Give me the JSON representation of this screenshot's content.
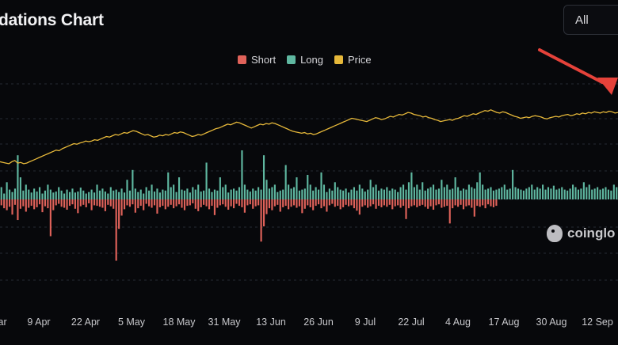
{
  "header": {
    "title": "dations Chart",
    "range_value": "All"
  },
  "legend": [
    {
      "label": "Short",
      "color": "#e0625a"
    },
    {
      "label": "Long",
      "color": "#5fb8a1"
    },
    {
      "label": "Price",
      "color": "#e6b83a"
    }
  ],
  "watermark": {
    "text": "coinglo"
  },
  "chart_data": {
    "type": "bar",
    "x_tick_labels": [
      "ar",
      "9 Apr",
      "22 Apr",
      "5 May",
      "18 May",
      "31 May",
      "13 Jun",
      "26 Jun",
      "9 Jul",
      "22 Jul",
      "4 Aug",
      "17 Aug",
      "30 Aug",
      "12 Sep"
    ],
    "series": [
      {
        "name": "Short",
        "color": "#e0625a",
        "values": [
          0.12,
          0.18,
          0.22,
          0.15,
          0.31,
          0.11,
          0.42,
          0.19,
          0.14,
          0.25,
          0.17,
          0.13,
          0.2,
          0.16,
          0.1,
          0.26,
          0.14,
          0.18,
          0.75,
          0.22,
          0.12,
          0.09,
          0.15,
          0.17,
          0.21,
          0.13,
          0.1,
          0.19,
          0.28,
          0.14,
          0.11,
          0.16,
          0.08,
          0.22,
          0.12,
          0.13,
          0.15,
          0.17,
          0.24,
          0.11,
          0.14,
          0.19,
          1.25,
          0.6,
          0.33,
          0.2,
          0.12,
          0.15,
          0.1,
          0.27,
          0.18,
          0.13,
          0.22,
          0.09,
          0.14,
          0.17,
          0.12,
          0.29,
          0.16,
          0.13,
          0.2,
          0.15,
          0.11,
          0.18,
          0.14,
          0.1,
          0.17,
          0.22,
          0.13,
          0.12,
          0.08,
          0.19,
          0.24,
          0.16,
          0.11,
          0.14,
          0.2,
          0.13,
          0.32,
          0.17,
          0.12,
          0.1,
          0.15,
          0.21,
          0.14,
          0.18,
          0.09,
          0.13,
          0.16,
          0.27,
          0.12,
          0.1,
          0.19,
          0.14,
          0.12,
          0.86,
          0.55,
          0.3,
          0.18,
          0.22,
          0.14,
          0.11,
          0.25,
          0.16,
          0.13,
          0.2,
          0.15,
          0.12,
          0.17,
          0.14,
          0.28,
          0.19,
          0.12,
          0.16,
          0.22,
          0.13,
          0.1,
          0.18,
          0.14,
          0.25,
          0.12,
          0.09,
          0.15,
          0.13,
          0.2,
          0.16,
          0.11,
          0.14,
          0.12,
          0.18,
          0.23,
          0.31,
          0.15,
          0.12,
          0.17,
          0.14,
          0.1,
          0.19,
          0.13,
          0.16,
          0.12,
          0.15,
          0.11,
          0.2,
          0.14,
          0.12,
          0.17,
          0.13,
          0.4,
          0.18,
          0.14,
          0.12,
          0.16,
          0.13,
          0.11,
          0.15,
          0.19,
          0.14,
          0.21,
          0.12,
          0.1,
          0.17,
          0.15,
          0.13,
          0.49,
          0.18,
          0.12,
          0.15,
          0.11,
          0.2,
          0.14,
          0.12,
          0.17,
          0.35,
          0.13,
          0.15,
          0.12,
          0.18,
          0.1,
          0.14,
          0.16,
          0.13
        ]
      },
      {
        "name": "Long",
        "color": "#5fb8a1",
        "values": [
          0.25,
          0.12,
          0.35,
          0.2,
          0.15,
          0.22,
          0.9,
          0.45,
          0.18,
          0.3,
          0.2,
          0.14,
          0.22,
          0.16,
          0.25,
          0.12,
          0.18,
          0.3,
          0.2,
          0.14,
          0.16,
          0.25,
          0.18,
          0.12,
          0.2,
          0.15,
          0.22,
          0.14,
          0.16,
          0.24,
          0.18,
          0.12,
          0.15,
          0.2,
          0.14,
          0.3,
          0.18,
          0.22,
          0.16,
          0.12,
          0.25,
          0.18,
          0.2,
          0.15,
          0.22,
          0.14,
          0.4,
          0.18,
          0.6,
          0.22,
          0.15,
          0.2,
          0.12,
          0.25,
          0.18,
          0.3,
          0.16,
          0.22,
          0.14,
          0.2,
          0.18,
          0.55,
          0.25,
          0.3,
          0.15,
          0.45,
          0.2,
          0.18,
          0.22,
          0.14,
          0.25,
          0.2,
          0.3,
          0.16,
          0.18,
          0.75,
          0.22,
          0.15,
          0.2,
          0.18,
          0.45,
          0.25,
          0.3,
          0.14,
          0.2,
          0.22,
          0.18,
          0.25,
          1.0,
          0.3,
          0.2,
          0.16,
          0.22,
          0.18,
          0.25,
          0.2,
          0.9,
          0.4,
          0.22,
          0.25,
          0.3,
          0.15,
          0.18,
          0.2,
          0.7,
          0.3,
          0.22,
          0.25,
          0.45,
          0.18,
          0.2,
          0.22,
          0.5,
          0.3,
          0.18,
          0.25,
          0.2,
          0.55,
          0.3,
          0.15,
          0.22,
          0.18,
          0.35,
          0.25,
          0.2,
          0.18,
          0.22,
          0.14,
          0.2,
          0.25,
          0.18,
          0.3,
          0.22,
          0.16,
          0.2,
          0.4,
          0.25,
          0.3,
          0.18,
          0.22,
          0.2,
          0.25,
          0.18,
          0.22,
          0.2,
          0.15,
          0.25,
          0.3,
          0.2,
          0.35,
          0.55,
          0.25,
          0.3,
          0.2,
          0.35,
          0.18,
          0.22,
          0.25,
          0.3,
          0.2,
          0.22,
          0.4,
          0.25,
          0.3,
          0.2,
          0.22,
          0.45,
          0.25,
          0.18,
          0.22,
          0.2,
          0.3,
          0.25,
          0.22,
          0.35,
          0.55,
          0.3,
          0.2,
          0.22,
          0.25,
          0.18,
          0.2,
          0.22,
          0.25,
          0.3,
          0.2,
          0.22,
          0.6,
          0.25,
          0.22,
          0.2,
          0.18,
          0.22,
          0.25,
          0.3,
          0.2,
          0.25,
          0.22,
          0.3,
          0.2,
          0.25,
          0.22,
          0.28,
          0.2,
          0.22,
          0.25,
          0.2,
          0.18,
          0.22,
          0.3,
          0.25,
          0.2,
          0.22,
          0.35,
          0.25,
          0.3,
          0.2,
          0.22,
          0.25,
          0.2,
          0.22,
          0.25,
          0.2,
          0.18,
          0.3,
          0.25
        ]
      },
      {
        "name": "Price",
        "color": "#e6b83a",
        "values": [
          0.58,
          0.57,
          0.56,
          0.55,
          0.58,
          0.6,
          0.56,
          0.57,
          0.55,
          0.56,
          0.58,
          0.6,
          0.62,
          0.64,
          0.66,
          0.68,
          0.7,
          0.72,
          0.74,
          0.76,
          0.75,
          0.78,
          0.8,
          0.82,
          0.84,
          0.86,
          0.85,
          0.87,
          0.88,
          0.9,
          0.89,
          0.9,
          0.92,
          0.91,
          0.93,
          0.95,
          0.97,
          0.96,
          0.98,
          1.0,
          0.99,
          1.01,
          1.03,
          1.02,
          1.04,
          1.06,
          1.05,
          1.03,
          1.01,
          0.99,
          1.0,
          0.98,
          0.96,
          0.97,
          0.99,
          0.98,
          1.0,
          0.99,
          1.01,
          1.03,
          1.02,
          1.04,
          1.03,
          1.01,
          0.99,
          0.97,
          0.98,
          1.0,
          0.99,
          1.01,
          1.03,
          1.05,
          1.07,
          1.09,
          1.1,
          1.12,
          1.14,
          1.16,
          1.15,
          1.17,
          1.19,
          1.18,
          1.16,
          1.14,
          1.12,
          1.1,
          1.12,
          1.14,
          1.16,
          1.15,
          1.17,
          1.16,
          1.18,
          1.17,
          1.15,
          1.13,
          1.11,
          1.09,
          1.07,
          1.05,
          1.04,
          1.03,
          1.02,
          1.03,
          1.01,
          1.02,
          1.0,
          1.01,
          1.03,
          1.05,
          1.07,
          1.09,
          1.11,
          1.13,
          1.15,
          1.17,
          1.19,
          1.21,
          1.23,
          1.25,
          1.24,
          1.23,
          1.22,
          1.21,
          1.2,
          1.22,
          1.24,
          1.26,
          1.25,
          1.23,
          1.24,
          1.26,
          1.28,
          1.27,
          1.29,
          1.31,
          1.3,
          1.32,
          1.34,
          1.33,
          1.31,
          1.3,
          1.29,
          1.27,
          1.28,
          1.26,
          1.25,
          1.23,
          1.22,
          1.2,
          1.21,
          1.22,
          1.23,
          1.22,
          1.24,
          1.25,
          1.27,
          1.29,
          1.28,
          1.3,
          1.32,
          1.31,
          1.33,
          1.35,
          1.37,
          1.36,
          1.38,
          1.36,
          1.34,
          1.33,
          1.35,
          1.34,
          1.32,
          1.3,
          1.28,
          1.27,
          1.25,
          1.26,
          1.27,
          1.26,
          1.28,
          1.29,
          1.28,
          1.27,
          1.25,
          1.24,
          1.26,
          1.27,
          1.28,
          1.27,
          1.29,
          1.3,
          1.31,
          1.29,
          1.3,
          1.32,
          1.31,
          1.33,
          1.32,
          1.34,
          1.33,
          1.35,
          1.34,
          1.33,
          1.35,
          1.34,
          1.36,
          1.35,
          1.33,
          1.34
        ]
      }
    ],
    "grid": "horizontal dashed",
    "legend_position": "top-center"
  }
}
